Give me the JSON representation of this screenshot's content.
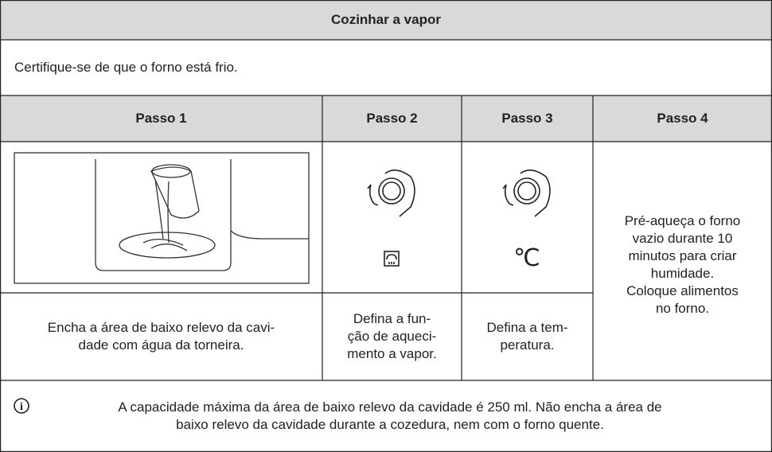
{
  "title": "Cozinhar a vapor",
  "intro": "Certifique-se de que o forno está frio.",
  "steps": [
    {
      "header": "Passo 1",
      "text": "Encha a área de baixo relevo da cavi-\ndade com água da torneira."
    },
    {
      "header": "Passo 2",
      "text": "Defina a fun-\nção de aqueci-\nmento a vapor."
    },
    {
      "header": "Passo 3",
      "text": "Defina a tem-\nperatura.",
      "symbol": "℃"
    },
    {
      "header": "Passo 4",
      "text": "Pré-aqueça o forno\nvazio durante 10\nminutos para criar\nhumidade.\nColoque alimentos\nno forno."
    }
  ],
  "note": "A capacidade máxima da área de baixo relevo da cavidade é 250 ml. Não encha a área de\nbaixo relevo da cavidade durante a cozedura, nem com o forno quente."
}
